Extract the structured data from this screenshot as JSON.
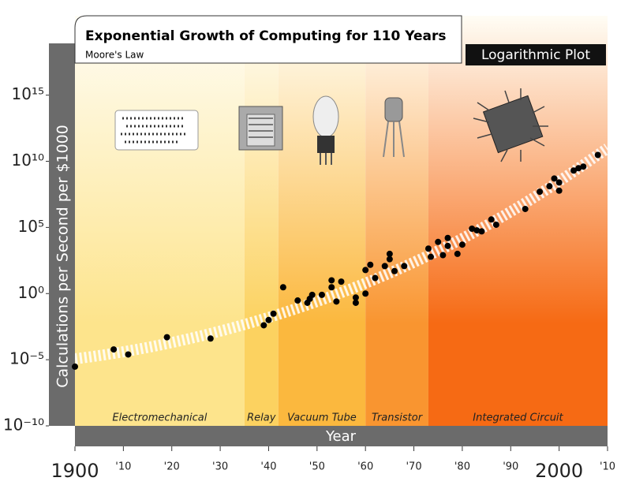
{
  "chart_data": {
    "type": "scatter",
    "title": "Exponential Growth of Computing for 110 Years",
    "subtitle": "Moore's Law",
    "annotation": "Logarithmic Plot",
    "x_label": "Year",
    "y_label": "Calculations per Second per $1000",
    "log_y": true,
    "xlim": [
      1900,
      2010
    ],
    "ylim": [
      1e-10,
      1e+21
    ],
    "xticks": [
      {
        "value": 1900,
        "label": "1900"
      },
      {
        "value": 1910,
        "label": "'10"
      },
      {
        "value": 1920,
        "label": "'20"
      },
      {
        "value": 1930,
        "label": "'30"
      },
      {
        "value": 1940,
        "label": "'40"
      },
      {
        "value": 1950,
        "label": "'50"
      },
      {
        "value": 1960,
        "label": "'60"
      },
      {
        "value": 1970,
        "label": "'70"
      },
      {
        "value": 1980,
        "label": "'80"
      },
      {
        "value": 1990,
        "label": "'90"
      },
      {
        "value": 2000,
        "label": "2000"
      },
      {
        "value": 2010,
        "label": "'10"
      }
    ],
    "yticks": [
      {
        "value": 1e-10,
        "label": "10⁻¹⁰"
      },
      {
        "value": 1e-05,
        "label": "10⁻⁵"
      },
      {
        "value": 1,
        "label": "10⁰"
      },
      {
        "value": 100000.0,
        "label": "10⁵"
      },
      {
        "value": 10000000000.0,
        "label": "10¹⁰"
      },
      {
        "value": 1000000000000000.0,
        "label": "10¹⁵"
      }
    ],
    "eras": [
      {
        "name": "Electromechanical",
        "start": 1900,
        "end": 1935,
        "color": "#fde48c"
      },
      {
        "name": "Relay",
        "start": 1935,
        "end": 1942,
        "color": "#fcd260"
      },
      {
        "name": "Vacuum Tube",
        "start": 1942,
        "end": 1960,
        "color": "#fbb83e"
      },
      {
        "name": "Transistor",
        "start": 1960,
        "end": 1973,
        "color": "#f99530"
      },
      {
        "name": "Integrated Circuit",
        "start": 1973,
        "end": 2010,
        "color": "#f66a14"
      }
    ],
    "color": "#000000",
    "x": [
      1900,
      1908,
      1911,
      1919,
      1928,
      1939,
      1940,
      1941,
      1943,
      1946,
      1948,
      1948.5,
      1949,
      1951,
      1953,
      1953,
      1955,
      1954,
      1958,
      1958,
      1960,
      1960,
      1961,
      1962,
      1964,
      1965,
      1965,
      1966,
      1968,
      1973,
      1973.5,
      1975,
      1976,
      1977,
      1977,
      1979,
      1980,
      1982,
      1983,
      1984,
      1986,
      1987,
      1993,
      1996,
      1998,
      1999,
      2000,
      2000,
      2003,
      2004,
      2005,
      2008
    ],
    "values": [
      3e-06,
      6e-05,
      2.5e-05,
      0.0005,
      0.0004,
      0.004,
      0.01,
      0.03,
      3,
      0.3,
      0.2,
      0.4,
      0.8,
      0.8,
      10,
      3,
      8,
      0.25,
      0.5,
      0.2,
      1,
      60,
      150,
      15,
      120,
      1000,
      400,
      50,
      120,
      2500,
      600,
      8000,
      800,
      4000,
      16000,
      1000,
      5000,
      80000,
      60000,
      50000,
      400000,
      160000,
      2500000,
      50000000,
      130000000,
      500000000,
      60000000,
      250000000,
      2000000000,
      3000000000,
      4000000000,
      30000000000
    ]
  }
}
